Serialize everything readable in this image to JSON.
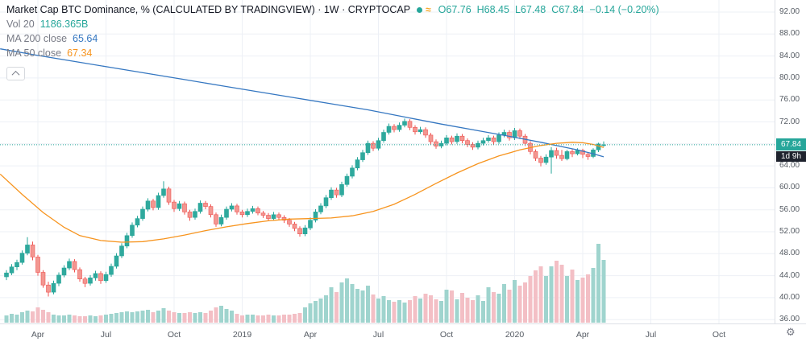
{
  "legend": {
    "title": "Market Cap BTC Dominance, % (CALCULATED BY TRADINGVIEW) · 1W · CRYPTOCAP",
    "ohlc": {
      "o": "O67.76",
      "h": "H68.45",
      "l": "L67.48",
      "c": "C67.84",
      "change": "−0.14 (−0.20%)"
    },
    "vol_label": "Vol 20",
    "vol_value": "1186.365B",
    "ma200_label": "MA 200 close",
    "ma200_value": "65.64",
    "ma50_label": "MA 50 close",
    "ma50_value": "67.34"
  },
  "badges": {
    "price": "67.84",
    "countdown": "1d 9h"
  },
  "icons": {
    "approx": "≈",
    "gear": "⚙"
  },
  "colors": {
    "up_stroke": "#26a69a",
    "up_fill": "#2fa99d",
    "down_stroke": "#ef5350",
    "down_fill": "#f29791",
    "vol_up": "#9fd4ce",
    "vol_down": "#f3bfc5",
    "ma200": "#3577c1",
    "ma50": "#f7941e",
    "grid": "#edf0f6",
    "price_line": "#26a69a",
    "ohlc_text": "#26a69a",
    "vol_value_text": "#26a69a",
    "badge_price_bg": "#26a69a",
    "badge_countdown_bg": "#1e222d",
    "live_dot": "#26a69a",
    "approx_icon": "#f5a623"
  },
  "chart_data": {
    "type": "candlestick",
    "title": "Market Cap BTC Dominance, %",
    "source_note": "CALCULATED BY TRADINGVIEW",
    "interval": "1W",
    "symbol": "CRYPTOCAP",
    "last_price": 67.84,
    "change": -0.14,
    "change_pct": -0.2,
    "current_bar": {
      "open": 67.76,
      "high": 68.45,
      "low": 67.48,
      "close": 67.84
    },
    "volume_display": "1186.365B",
    "ma200_close": 65.64,
    "ma50_close": 67.34,
    "countdown": "1d 9h",
    "ylim": [
      34,
      94
    ],
    "grid": true,
    "y_axis_ticks": [
      92,
      88,
      84,
      80,
      76,
      72,
      68,
      64,
      60,
      56,
      52,
      48,
      44,
      40,
      36
    ],
    "x_axis_ticks": [
      {
        "index": 6,
        "label": "Apr"
      },
      {
        "index": 19,
        "label": "Jul"
      },
      {
        "index": 32,
        "label": "Oct"
      },
      {
        "index": 45,
        "label": "2019",
        "year": true
      },
      {
        "index": 58,
        "label": "Apr"
      },
      {
        "index": 71,
        "label": "Jul"
      },
      {
        "index": 84,
        "label": "Oct"
      },
      {
        "index": 97,
        "label": "2020",
        "year": true
      },
      {
        "index": 110,
        "label": "Apr"
      },
      {
        "index": 123,
        "label": "Jul"
      },
      {
        "index": 136,
        "label": "Oct"
      }
    ],
    "candles": [
      [
        43.8,
        45.0,
        43.2,
        44.5
      ],
      [
        44.5,
        46.1,
        44.1,
        45.6
      ],
      [
        45.6,
        46.9,
        45.0,
        46.4
      ],
      [
        46.4,
        48.6,
        46.0,
        48.1
      ],
      [
        48.1,
        51.0,
        47.7,
        49.6
      ],
      [
        49.6,
        50.2,
        46.8,
        47.4
      ],
      [
        47.4,
        47.8,
        44.0,
        44.6
      ],
      [
        44.6,
        45.0,
        41.8,
        42.3
      ],
      [
        42.3,
        42.9,
        40.2,
        41.0
      ],
      [
        41.0,
        43.1,
        40.6,
        42.6
      ],
      [
        42.6,
        44.6,
        42.1,
        44.1
      ],
      [
        44.1,
        45.9,
        43.7,
        45.4
      ],
      [
        45.4,
        47.1,
        45.0,
        46.6
      ],
      [
        46.6,
        47.0,
        44.6,
        45.1
      ],
      [
        45.1,
        45.5,
        42.9,
        43.4
      ],
      [
        43.4,
        43.8,
        41.9,
        42.6
      ],
      [
        42.6,
        44.1,
        42.2,
        43.6
      ],
      [
        43.6,
        44.9,
        43.1,
        44.4
      ],
      [
        44.4,
        44.8,
        42.5,
        43.1
      ],
      [
        43.1,
        44.7,
        42.7,
        44.2
      ],
      [
        44.2,
        46.2,
        43.8,
        45.7
      ],
      [
        45.7,
        48.1,
        45.3,
        47.6
      ],
      [
        47.6,
        49.9,
        47.2,
        49.4
      ],
      [
        49.4,
        51.8,
        49.0,
        51.3
      ],
      [
        51.3,
        53.7,
        50.9,
        53.2
      ],
      [
        53.2,
        54.9,
        52.8,
        54.4
      ],
      [
        54.4,
        56.6,
        54.0,
        56.1
      ],
      [
        56.1,
        58.1,
        55.7,
        57.6
      ],
      [
        57.6,
        58.0,
        55.9,
        56.4
      ],
      [
        56.4,
        59.1,
        56.0,
        58.6
      ],
      [
        58.6,
        61.2,
        58.2,
        59.8
      ],
      [
        59.8,
        60.2,
        56.9,
        57.4
      ],
      [
        57.4,
        57.8,
        55.6,
        56.2
      ],
      [
        56.2,
        57.6,
        55.8,
        57.1
      ],
      [
        57.1,
        57.5,
        55.1,
        55.6
      ],
      [
        55.6,
        56.0,
        54.0,
        54.6
      ],
      [
        54.6,
        56.2,
        54.2,
        55.7
      ],
      [
        55.7,
        57.7,
        55.3,
        57.2
      ],
      [
        57.2,
        57.6,
        56.1,
        56.6
      ],
      [
        56.6,
        57.0,
        54.6,
        55.1
      ],
      [
        55.1,
        55.5,
        52.9,
        53.4
      ],
      [
        53.4,
        55.1,
        53.0,
        54.6
      ],
      [
        54.6,
        56.6,
        54.2,
        56.1
      ],
      [
        56.1,
        57.2,
        55.7,
        56.7
      ],
      [
        56.7,
        57.1,
        55.1,
        55.6
      ],
      [
        55.6,
        56.0,
        54.6,
        55.1
      ],
      [
        55.1,
        56.2,
        54.7,
        55.7
      ],
      [
        55.7,
        56.7,
        55.3,
        56.2
      ],
      [
        56.2,
        56.6,
        55.0,
        55.4
      ],
      [
        55.4,
        55.8,
        54.5,
        55.0
      ],
      [
        55.0,
        55.4,
        53.9,
        54.4
      ],
      [
        54.4,
        55.6,
        54.0,
        55.1
      ],
      [
        55.1,
        55.5,
        54.1,
        54.6
      ],
      [
        54.6,
        55.0,
        53.6,
        54.1
      ],
      [
        54.1,
        54.5,
        52.9,
        53.4
      ],
      [
        53.4,
        53.8,
        52.1,
        52.6
      ],
      [
        52.6,
        53.0,
        51.1,
        51.6
      ],
      [
        51.6,
        53.2,
        51.2,
        52.7
      ],
      [
        52.7,
        54.6,
        52.3,
        54.1
      ],
      [
        54.1,
        56.1,
        53.7,
        55.6
      ],
      [
        55.6,
        57.2,
        55.2,
        56.7
      ],
      [
        56.7,
        58.7,
        56.3,
        58.2
      ],
      [
        58.2,
        60.1,
        57.8,
        59.6
      ],
      [
        59.6,
        60.0,
        58.2,
        58.7
      ],
      [
        58.7,
        61.1,
        58.3,
        60.6
      ],
      [
        60.6,
        62.6,
        60.2,
        62.1
      ],
      [
        62.1,
        64.1,
        61.7,
        63.6
      ],
      [
        63.6,
        65.6,
        63.2,
        65.1
      ],
      [
        65.1,
        66.9,
        64.7,
        66.4
      ],
      [
        66.4,
        68.6,
        66.0,
        68.1
      ],
      [
        68.1,
        68.5,
        66.7,
        67.2
      ],
      [
        67.2,
        69.1,
        66.8,
        68.6
      ],
      [
        68.6,
        70.6,
        68.2,
        70.1
      ],
      [
        70.1,
        71.7,
        69.7,
        71.2
      ],
      [
        71.2,
        71.6,
        70.1,
        70.6
      ],
      [
        70.6,
        71.9,
        70.2,
        71.4
      ],
      [
        71.4,
        72.6,
        71.0,
        72.1
      ],
      [
        72.1,
        72.5,
        70.5,
        71.0
      ],
      [
        71.0,
        71.4,
        69.7,
        70.2
      ],
      [
        70.2,
        71.1,
        69.8,
        70.6
      ],
      [
        70.6,
        71.0,
        69.1,
        69.6
      ],
      [
        69.6,
        70.0,
        67.9,
        68.4
      ],
      [
        68.4,
        68.8,
        67.1,
        67.6
      ],
      [
        67.6,
        68.6,
        67.2,
        68.1
      ],
      [
        68.1,
        69.6,
        67.7,
        69.1
      ],
      [
        69.1,
        69.5,
        67.9,
        68.4
      ],
      [
        68.4,
        69.9,
        68.0,
        69.4
      ],
      [
        69.4,
        69.8,
        68.1,
        68.6
      ],
      [
        68.6,
        69.0,
        67.4,
        67.9
      ],
      [
        67.9,
        68.3,
        66.9,
        67.4
      ],
      [
        67.4,
        68.6,
        67.0,
        68.1
      ],
      [
        68.1,
        69.1,
        67.7,
        68.6
      ],
      [
        68.6,
        69.6,
        68.2,
        69.1
      ],
      [
        69.1,
        69.5,
        67.9,
        68.4
      ],
      [
        68.4,
        70.1,
        68.0,
        69.6
      ],
      [
        69.6,
        70.6,
        69.2,
        70.1
      ],
      [
        70.1,
        70.5,
        68.6,
        69.1
      ],
      [
        69.1,
        70.9,
        68.7,
        70.4
      ],
      [
        70.4,
        70.8,
        68.9,
        69.4
      ],
      [
        69.4,
        69.8,
        67.6,
        68.1
      ],
      [
        68.1,
        68.5,
        66.1,
        66.6
      ],
      [
        66.6,
        67.0,
        64.9,
        65.4
      ],
      [
        65.4,
        65.8,
        63.9,
        64.6
      ],
      [
        64.6,
        66.1,
        64.2,
        65.6
      ],
      [
        65.6,
        67.4,
        62.6,
        66.8
      ],
      [
        66.8,
        67.3,
        65.3,
        65.9
      ],
      [
        65.9,
        66.9,
        64.9,
        65.3
      ],
      [
        65.3,
        66.9,
        65.0,
        66.6
      ],
      [
        66.6,
        67.0,
        65.6,
        66.2
      ],
      [
        66.2,
        67.2,
        65.9,
        66.8
      ],
      [
        66.8,
        67.1,
        65.4,
        66.1
      ],
      [
        66.1,
        66.5,
        65.1,
        65.7
      ],
      [
        65.7,
        67.2,
        65.4,
        66.9
      ],
      [
        66.9,
        68.2,
        66.5,
        67.98
      ],
      [
        67.76,
        68.45,
        67.48,
        67.84
      ]
    ],
    "volume": [
      9,
      11,
      10,
      13,
      15,
      14,
      19,
      16,
      13,
      10,
      9,
      9,
      10,
      9,
      8,
      8,
      9,
      8,
      9,
      10,
      11,
      12,
      13,
      14,
      13,
      14,
      15,
      16,
      13,
      15,
      18,
      15,
      13,
      12,
      12,
      13,
      12,
      13,
      12,
      15,
      19,
      21,
      17,
      15,
      11,
      9,
      10,
      10,
      9,
      9,
      10,
      9,
      9,
      10,
      10,
      11,
      12,
      19,
      24,
      27,
      30,
      34,
      44,
      38,
      50,
      55,
      48,
      42,
      40,
      46,
      35,
      30,
      33,
      28,
      26,
      28,
      25,
      28,
      33,
      30,
      36,
      34,
      29,
      27,
      41,
      40,
      29,
      37,
      31,
      28,
      34,
      27,
      44,
      38,
      36,
      48,
      41,
      53,
      46,
      50,
      58,
      65,
      70,
      58,
      70,
      77,
      72,
      58,
      66,
      53,
      56,
      60,
      68,
      98,
      78
    ],
    "ma200": [
      [
        -1.2,
        85.3
      ],
      [
        6,
        84.1
      ],
      [
        13,
        83.0
      ],
      [
        20,
        81.9
      ],
      [
        27,
        80.8
      ],
      [
        34,
        79.7
      ],
      [
        41,
        78.6
      ],
      [
        48,
        77.5
      ],
      [
        55,
        76.4
      ],
      [
        62,
        75.3
      ],
      [
        69,
        74.2
      ],
      [
        76,
        72.9
      ],
      [
        83,
        71.6
      ],
      [
        90,
        70.4
      ],
      [
        97,
        69.2
      ],
      [
        102,
        68.3
      ],
      [
        106,
        67.5
      ],
      [
        109,
        66.9
      ],
      [
        112,
        66.2
      ],
      [
        114,
        65.64
      ]
    ],
    "ma50": [
      [
        -1.2,
        62.5
      ],
      [
        3,
        58.8
      ],
      [
        7,
        55.5
      ],
      [
        11,
        52.8
      ],
      [
        14,
        51.3
      ],
      [
        18,
        50.4
      ],
      [
        22,
        50.1
      ],
      [
        26,
        50.2
      ],
      [
        30,
        50.7
      ],
      [
        34,
        51.4
      ],
      [
        38,
        52.2
      ],
      [
        42,
        52.9
      ],
      [
        46,
        53.5
      ],
      [
        50,
        54.0
      ],
      [
        54,
        54.3
      ],
      [
        58,
        54.4
      ],
      [
        62,
        54.5
      ],
      [
        66,
        54.9
      ],
      [
        70,
        55.7
      ],
      [
        74,
        57.0
      ],
      [
        78,
        58.8
      ],
      [
        82,
        60.8
      ],
      [
        86,
        62.7
      ],
      [
        90,
        64.4
      ],
      [
        94,
        65.8
      ],
      [
        98,
        66.9
      ],
      [
        102,
        67.7
      ],
      [
        105,
        68.1
      ],
      [
        108,
        68.3
      ],
      [
        110,
        68.2
      ],
      [
        112,
        67.9
      ],
      [
        114,
        67.34
      ]
    ]
  }
}
